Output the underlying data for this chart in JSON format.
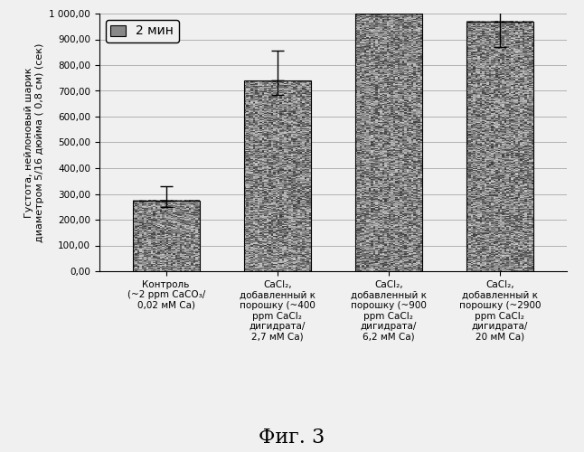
{
  "categories": [
    "Контроль\n(~2 ppm CaCO₃/\n0,02 мМ Ca)",
    "CaCl₂,\nдобавленный к\nпорошку (~400\nppm CaCl₂\nдигидрата/\n2,7 мМ Ca)",
    "CaCl₂,\nдобавленный к\nпорошку (~900\nppm CaCl₂\nдигидрата/\n6,2 мМ Ca)",
    "CaCl₂,\nдобавленный к\nпорошку (~2900\nppm CaCl₂\nдигидрата/\n20 мМ Ca)"
  ],
  "values": [
    275,
    740,
    1000,
    970
  ],
  "errors": [
    55,
    115,
    0,
    200
  ],
  "ylim": [
    0,
    1000
  ],
  "yticks": [
    0,
    100,
    200,
    300,
    400,
    500,
    600,
    700,
    800,
    900,
    1000
  ],
  "ytick_labels": [
    "0,00",
    "100,00",
    "200,00",
    "300,00",
    "400,00",
    "500,00",
    "600,00",
    "700,00",
    "800,00",
    "900,00",
    "1 000,00"
  ],
  "ylabel": "Густота, нейлоновый шарик\nдиаметром 5/16 дюйма ( 0,8 см) (сек)",
  "legend_label": "2 мин",
  "figure_title": "Фиг. 3",
  "bar_color": "#666666",
  "bar_width": 0.6,
  "background_color": "#f0f0f0",
  "grid_color": "#999999",
  "font_size_ticks": 7.5,
  "font_size_ylabel": 8,
  "font_size_xlabel": 7.5,
  "font_size_title": 16,
  "font_size_legend": 10
}
